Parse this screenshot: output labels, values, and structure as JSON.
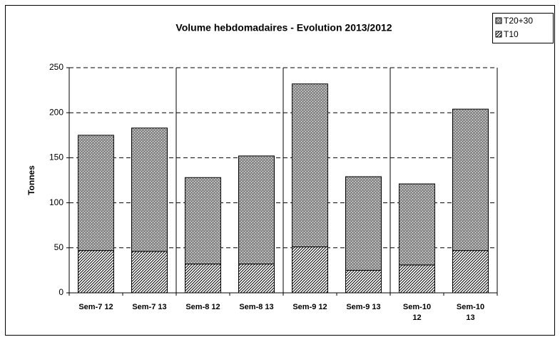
{
  "chart_data": {
    "type": "stacked_bar",
    "title": "Volume hebdomadaires  - Evolution 2013/2012",
    "y_label": "Tonnes",
    "categories": [
      "Sem-7  12",
      "Sem-7  13",
      "Sem-8  12",
      "Sem-8  13",
      "Sem-9  12",
      "Sem-9  13",
      "Sem-10\n12",
      "Sem-10\n13"
    ],
    "series": [
      {
        "name": "T10",
        "color": "#000000",
        "pattern": "hatch",
        "values": [
          47,
          46,
          32,
          32,
          51,
          25,
          31,
          47
        ]
      },
      {
        "name": "T20+30",
        "color": "#000000",
        "pattern": "dots",
        "values": [
          128,
          137,
          96,
          120,
          181,
          104,
          90,
          157
        ]
      }
    ],
    "legend_order": [
      1,
      0
    ],
    "ylim": [
      0,
      250
    ],
    "yticks": [
      0,
      50,
      100,
      150,
      200,
      250
    ],
    "grid": true,
    "legend": "top-right"
  }
}
